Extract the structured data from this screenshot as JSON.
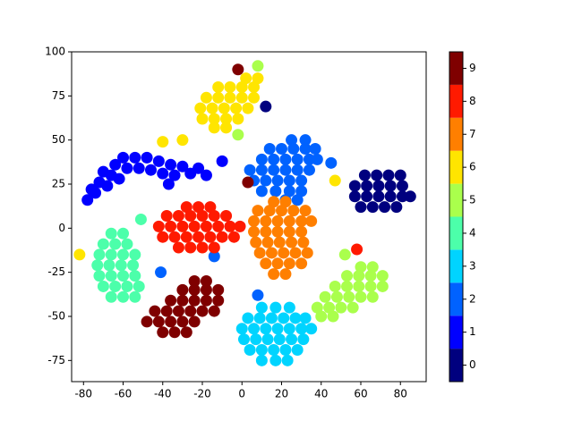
{
  "chart_data": {
    "type": "scatter",
    "xlim": [
      -86,
      93
    ],
    "ylim": [
      -87,
      100
    ],
    "xticks": [
      -80,
      -60,
      -40,
      -20,
      0,
      20,
      40,
      60,
      80
    ],
    "yticks": [
      -75,
      -50,
      -25,
      0,
      25,
      50,
      75,
      100
    ],
    "colorbar": {
      "lim": [
        -0.5,
        9.5
      ],
      "ticks": [
        0,
        1,
        2,
        3,
        4,
        5,
        6,
        7,
        8,
        9
      ]
    },
    "series": [
      {
        "color": "#00007f",
        "x": [
          62,
          68,
          74,
          80,
          57,
          63,
          69,
          75,
          81,
          57,
          63,
          69,
          75,
          81,
          85,
          60,
          66,
          72,
          78,
          12
        ],
        "y": [
          30,
          30,
          30,
          30,
          24,
          24,
          24,
          24,
          24,
          18,
          18,
          18,
          18,
          18,
          18,
          12,
          12,
          12,
          12,
          69
        ]
      },
      {
        "color": "#0000ff",
        "x": [
          -78,
          -74,
          -72,
          -68,
          -70,
          -66,
          -64,
          -60,
          -58,
          -54,
          -52,
          -48,
          -46,
          -42,
          -40,
          -36,
          -34,
          -30,
          -26,
          -22,
          -18,
          -62,
          -76,
          -10,
          -37
        ],
        "y": [
          16,
          20,
          26,
          24,
          32,
          30,
          36,
          40,
          34,
          40,
          34,
          40,
          33,
          38,
          31,
          36,
          30,
          35,
          31,
          34,
          30,
          28,
          22,
          38,
          25
        ]
      },
      {
        "color": "#0062ff",
        "x": [
          25,
          32,
          14,
          20,
          26,
          32,
          37,
          10,
          16,
          22,
          28,
          34,
          38,
          4,
          10,
          16,
          22,
          28,
          34,
          6,
          12,
          18,
          24,
          30,
          10,
          17,
          24,
          30,
          22,
          28,
          8,
          -41,
          -14,
          45
        ],
        "y": [
          50,
          50,
          45,
          45,
          45,
          45,
          45,
          39,
          39,
          39,
          39,
          39,
          39,
          33,
          33,
          33,
          33,
          33,
          33,
          27,
          27,
          27,
          27,
          27,
          21,
          21,
          21,
          21,
          16,
          16,
          -38,
          -25,
          -16,
          37
        ]
      },
      {
        "color": "#00d4ff",
        "x": [
          10,
          17,
          24,
          3,
          9,
          15,
          21,
          27,
          32,
          0,
          6,
          12,
          18,
          24,
          30,
          35,
          1,
          7,
          13,
          19,
          25,
          31,
          4,
          10,
          16,
          22,
          28,
          10,
          17,
          23
        ],
        "y": [
          -45,
          -45,
          -45,
          -51,
          -51,
          -51,
          -51,
          -51,
          -51,
          -57,
          -57,
          -57,
          -57,
          -57,
          -57,
          -57,
          -63,
          -63,
          -63,
          -63,
          -63,
          -63,
          -69,
          -69,
          -69,
          -69,
          -69,
          -75,
          -75,
          -75
        ]
      },
      {
        "color": "#4cffaa",
        "x": [
          -66,
          -60,
          -70,
          -64,
          -58,
          -72,
          -66,
          -60,
          -54,
          -73,
          -67,
          -61,
          -55,
          -72,
          -66,
          -60,
          -54,
          -70,
          -64,
          -58,
          -52,
          -66,
          -60,
          -54,
          -51
        ],
        "y": [
          -3,
          -3,
          -9,
          -9,
          -9,
          -15,
          -15,
          -15,
          -15,
          -21,
          -21,
          -21,
          -21,
          -27,
          -27,
          -27,
          -27,
          -33,
          -33,
          -33,
          -33,
          -39,
          -39,
          -39,
          5
        ]
      },
      {
        "color": "#aaff4c",
        "x": [
          60,
          66,
          53,
          59,
          65,
          71,
          47,
          53,
          59,
          65,
          71,
          42,
          48,
          54,
          60,
          66,
          38,
          44,
          50,
          56,
          40,
          46,
          -2,
          8,
          52
        ],
        "y": [
          -22,
          -22,
          -27,
          -27,
          -27,
          -27,
          -33,
          -33,
          -33,
          -33,
          -33,
          -39,
          -39,
          -39,
          -39,
          -39,
          -45,
          -45,
          -45,
          -45,
          -50,
          -50,
          53,
          92,
          -15
        ]
      },
      {
        "color": "#ffe500",
        "x": [
          2,
          8,
          -12,
          -6,
          0,
          6,
          -18,
          -12,
          -6,
          0,
          6,
          -21,
          -15,
          -9,
          -3,
          3,
          -20,
          -14,
          -8,
          -2,
          -14,
          -8,
          -40,
          -30,
          47,
          -82
        ],
        "y": [
          85,
          85,
          80,
          80,
          80,
          80,
          74,
          74,
          74,
          74,
          74,
          68,
          68,
          68,
          68,
          68,
          62,
          62,
          62,
          62,
          57,
          57,
          49,
          50,
          27,
          -15
        ]
      },
      {
        "color": "#ff7f00",
        "x": [
          16,
          22,
          8,
          14,
          20,
          26,
          32,
          6,
          12,
          18,
          24,
          30,
          35,
          6,
          12,
          18,
          24,
          30,
          7,
          13,
          19,
          25,
          31,
          9,
          15,
          21,
          27,
          33,
          12,
          18,
          24,
          30,
          16,
          22
        ],
        "y": [
          15,
          15,
          10,
          10,
          10,
          10,
          10,
          4,
          4,
          4,
          4,
          4,
          4,
          -2,
          -2,
          -2,
          -2,
          -2,
          -8,
          -8,
          -8,
          -8,
          -8,
          -14,
          -14,
          -14,
          -14,
          -14,
          -20,
          -20,
          -20,
          -20,
          -26,
          -26
        ]
      },
      {
        "color": "#ff1a00",
        "x": [
          -28,
          -22,
          -16,
          -38,
          -32,
          -26,
          -20,
          -14,
          -8,
          -42,
          -36,
          -30,
          -24,
          -18,
          -12,
          -6,
          -1,
          -40,
          -34,
          -28,
          -22,
          -16,
          -10,
          -4,
          -32,
          -26,
          -20,
          -14,
          58
        ],
        "y": [
          12,
          12,
          12,
          7,
          7,
          7,
          7,
          7,
          7,
          1,
          1,
          1,
          1,
          1,
          1,
          1,
          1,
          -5,
          -5,
          -5,
          -5,
          -5,
          -5,
          -5,
          -11,
          -11,
          -11,
          -11,
          -12
        ]
      },
      {
        "color": "#7f0000",
        "x": [
          -24,
          -18,
          -30,
          -24,
          -18,
          -12,
          -36,
          -30,
          -24,
          -18,
          -12,
          -44,
          -38,
          -32,
          -26,
          -20,
          -14,
          -48,
          -42,
          -36,
          -30,
          -24,
          -40,
          -34,
          -28,
          3,
          -2
        ],
        "y": [
          -30,
          -30,
          -35,
          -35,
          -35,
          -35,
          -41,
          -41,
          -41,
          -41,
          -41,
          -47,
          -47,
          -47,
          -47,
          -47,
          -47,
          -53,
          -53,
          -53,
          -53,
          -53,
          -59,
          -59,
          -59,
          26,
          90
        ]
      }
    ]
  }
}
